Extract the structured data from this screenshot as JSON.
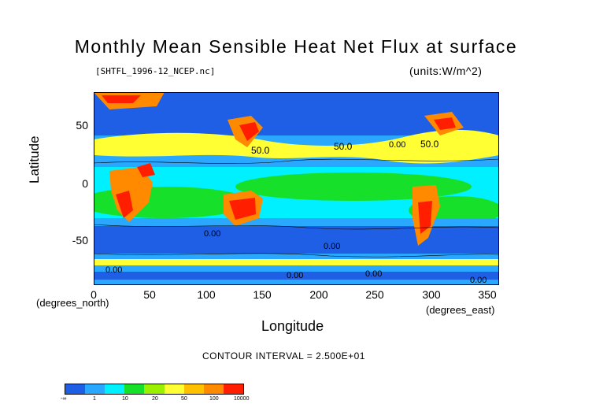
{
  "title": "Monthly Mean Sensible Heat Net Flux at surface",
  "source_file": "[SHTFL_1996-12_NCEP.nc]",
  "units": "(units:W/m^2)",
  "y_axis": {
    "label": "Latitude",
    "unit_label": "(degrees_north)",
    "ticks": [
      "50",
      "0",
      "-50"
    ]
  },
  "x_axis": {
    "label": "Longitude",
    "unit_label": "(degrees_east)",
    "ticks": [
      "0",
      "50",
      "100",
      "150",
      "200",
      "250",
      "300",
      "350"
    ]
  },
  "contour_interval": "CONTOUR INTERVAL = 2.500E+01",
  "contour_labels": [
    "50.0",
    "50.0",
    "50.0",
    "0.00",
    "0.00",
    "0.00",
    "0.00",
    "0.00",
    "0.00",
    "0.00"
  ],
  "colorbar": {
    "colors": [
      "#1f5fe6",
      "#2aa8ff",
      "#00f0ff",
      "#17e02a",
      "#9bf000",
      "#ffff33",
      "#ffc000",
      "#ff8a00",
      "#ff1f00"
    ],
    "tick_labels": [
      "-∞",
      "1",
      "10",
      "20",
      "50",
      "100",
      "10000"
    ]
  },
  "chart_data": {
    "type": "heatmap",
    "title": "Monthly Mean Sensible Heat Net Flux at surface",
    "xlabel": "Longitude",
    "ylabel": "Latitude",
    "xlim": [
      0,
      360
    ],
    "ylim": [
      -90,
      90
    ],
    "x_ticks": [
      0,
      50,
      100,
      150,
      200,
      250,
      300,
      350
    ],
    "y_ticks": [
      -50,
      0,
      50
    ],
    "units": "W/m^2",
    "contour_interval": 25,
    "color_levels": [
      "-∞",
      "1",
      "10",
      "20",
      "50",
      "100",
      "10000"
    ]
  }
}
